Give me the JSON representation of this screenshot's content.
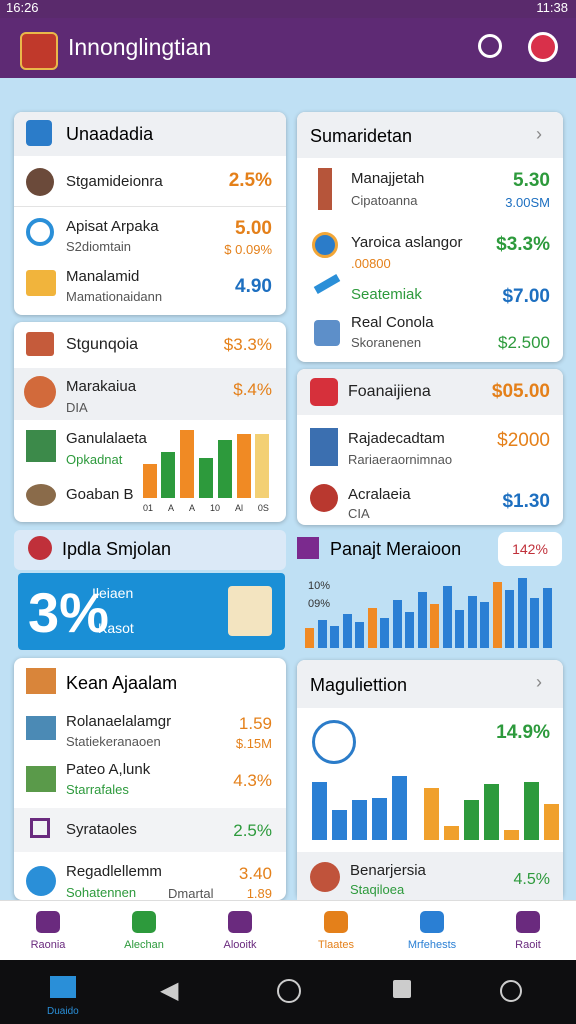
{
  "status_bar": {
    "time_left": "16:26",
    "time_right": "11:38"
  },
  "app_bar": {
    "title": "Innonglingtian"
  },
  "card_a": {
    "header": "Unaadadia",
    "rows": [
      {
        "label": "Stgamideionra",
        "value": "2.5%"
      },
      {
        "label": "Apisat Arpaka",
        "sub": "S2diomtain",
        "value": "5.00",
        "value_sub": "$ 0.09%"
      },
      {
        "label": "Manalamid",
        "sub": "Mamationaidann",
        "value": "4.90"
      }
    ]
  },
  "card_b": {
    "header": "Sumaridetan",
    "rows": [
      {
        "label": "Manajjetah",
        "sub": "Cipatoanna",
        "value": "5.30",
        "value_sub": "3.00SM"
      },
      {
        "label": "Yaroica aslangor",
        "sub": ".00800",
        "value": "$3.3%"
      },
      {
        "label": "Seatemiak",
        "value": "$7.00"
      },
      {
        "label": "Real Conola",
        "sub": "Skoranenen",
        "value": "$2.500"
      }
    ]
  },
  "card_c": {
    "header": "Stgunqoia",
    "header_value": "$3.3%",
    "rows": [
      {
        "label": "Marakaiua",
        "sub": "DIA",
        "value": "$.4%"
      },
      {
        "label": "Ganulalaeta",
        "sub": "Opkadnat"
      },
      {
        "label": "Goaban B"
      }
    ],
    "chart_labels": [
      "01",
      "A",
      "A",
      "10",
      "Al",
      "0S"
    ]
  },
  "card_d": {
    "header": "Foanaijiena",
    "header_value": "$05.00",
    "rows": [
      {
        "label": "Rajadecadtam",
        "sub": "Rariaeraornimnao",
        "value": "$2000"
      },
      {
        "label": "Acralaeia",
        "sub": "CIA",
        "value": "$1.30"
      }
    ]
  },
  "banner": {
    "left": "Ipdla Smjolan",
    "right": "Panajt Meraioon",
    "badge": "142%"
  },
  "promo": {
    "big": "3%",
    "line1": "Ileiaen",
    "line2": "Kasot",
    "chart_labels": [
      "10%",
      "09%"
    ]
  },
  "card_e": {
    "header": "Kean Ajaalam",
    "rows": [
      {
        "label": "Rolanaelalamgr",
        "sub": "Statiekeranaoen",
        "value": "1.59",
        "value_sub": "$.15M"
      },
      {
        "label": "Pateo A,lunk",
        "sub": "Starrafales",
        "value": "4.3%"
      },
      {
        "label": "Syrataoles",
        "value": "2.5%"
      },
      {
        "label": "Regadlellemm",
        "sub": "Sohatennen",
        "extra": "Dmartal",
        "value": "3.40",
        "value_sub": "1.89"
      }
    ]
  },
  "card_f": {
    "header": "Maguliettion",
    "stat": "14.9%",
    "rows": [
      {
        "label": "Benarjersia",
        "sub": "Staqiloea",
        "value": "4.5%"
      }
    ]
  },
  "bottom_nav": [
    "Raonia",
    "Alechan",
    "Alooitk",
    "Tlaates",
    "Mrfehests",
    "Raoit"
  ],
  "system_nav": {
    "home_label": "Duaido"
  }
}
